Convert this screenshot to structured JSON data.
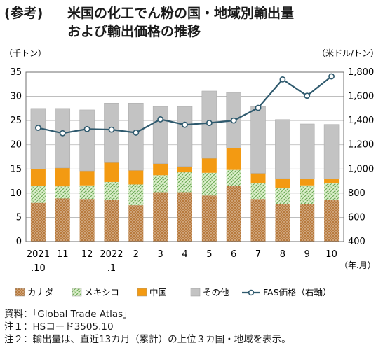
{
  "title": {
    "prefix": "(参考)",
    "line1": "米国の化工でん粉の国・地域別輸出量",
    "line2": "および輸出価格の推移"
  },
  "notes": [
    "資料：「Global Trade Atlas」",
    "注１：HSコード3505.10",
    "注２：輸出量は、直近13カ月（累計）の上位３カ国・地域を表示。"
  ],
  "colors": {
    "canada": "#b87a3d",
    "mexico": "#dff0cf",
    "china": "#f39a12",
    "other": "#c3c3c3",
    "price_line": "#2f5a6e"
  },
  "chart_data": {
    "type": "bar",
    "stacked": true,
    "categories": [
      [
        "2021",
        ".10"
      ],
      [
        "11"
      ],
      [
        "12"
      ],
      [
        "2022",
        ".1"
      ],
      [
        "2"
      ],
      [
        "3"
      ],
      [
        "4"
      ],
      [
        "5"
      ],
      [
        "6"
      ],
      [
        "7"
      ],
      [
        "8"
      ],
      [
        "9"
      ],
      [
        "10"
      ]
    ],
    "series": [
      {
        "name": "カナダ",
        "values": [
          8.0,
          8.9,
          8.8,
          8.6,
          7.5,
          10.2,
          10.2,
          9.5,
          11.5,
          8.8,
          7.7,
          7.8,
          8.6
        ]
      },
      {
        "name": "メキシコ",
        "values": [
          3.5,
          2.5,
          2.8,
          3.7,
          4.3,
          3.5,
          4.1,
          4.7,
          3.3,
          3.2,
          3.4,
          3.8,
          3.4
        ]
      },
      {
        "name": "中国",
        "values": [
          3.5,
          3.8,
          3.0,
          4.0,
          2.9,
          2.4,
          1.2,
          3.0,
          4.5,
          2.1,
          1.9,
          1.3,
          0.9
        ]
      },
      {
        "name": "その他",
        "values": [
          12.5,
          12.3,
          12.6,
          12.3,
          13.9,
          11.8,
          12.4,
          13.9,
          11.5,
          13.8,
          12.2,
          11.4,
          11.3
        ]
      }
    ],
    "line_series": {
      "name": "FAS価格（右軸）",
      "axis": "right",
      "values": [
        1340,
        1295,
        1330,
        1325,
        1300,
        1410,
        1365,
        1380,
        1400,
        1505,
        1740,
        1605,
        1765
      ]
    },
    "ylabel_left": "（千トン）",
    "ylabel_right": "（米ドル/トン）",
    "xlabel": "（年.月）",
    "ylim_left": [
      0,
      35
    ],
    "yticks_left": [
      "0",
      "5",
      "10",
      "15",
      "20",
      "25",
      "30",
      "35"
    ],
    "ylim_right": [
      400,
      1800
    ],
    "yticks_right": [
      "400",
      "600",
      "800",
      "1,000",
      "1,200",
      "1,400",
      "1,600",
      "1,800"
    ],
    "grid": true,
    "legend_position": "bottom"
  }
}
